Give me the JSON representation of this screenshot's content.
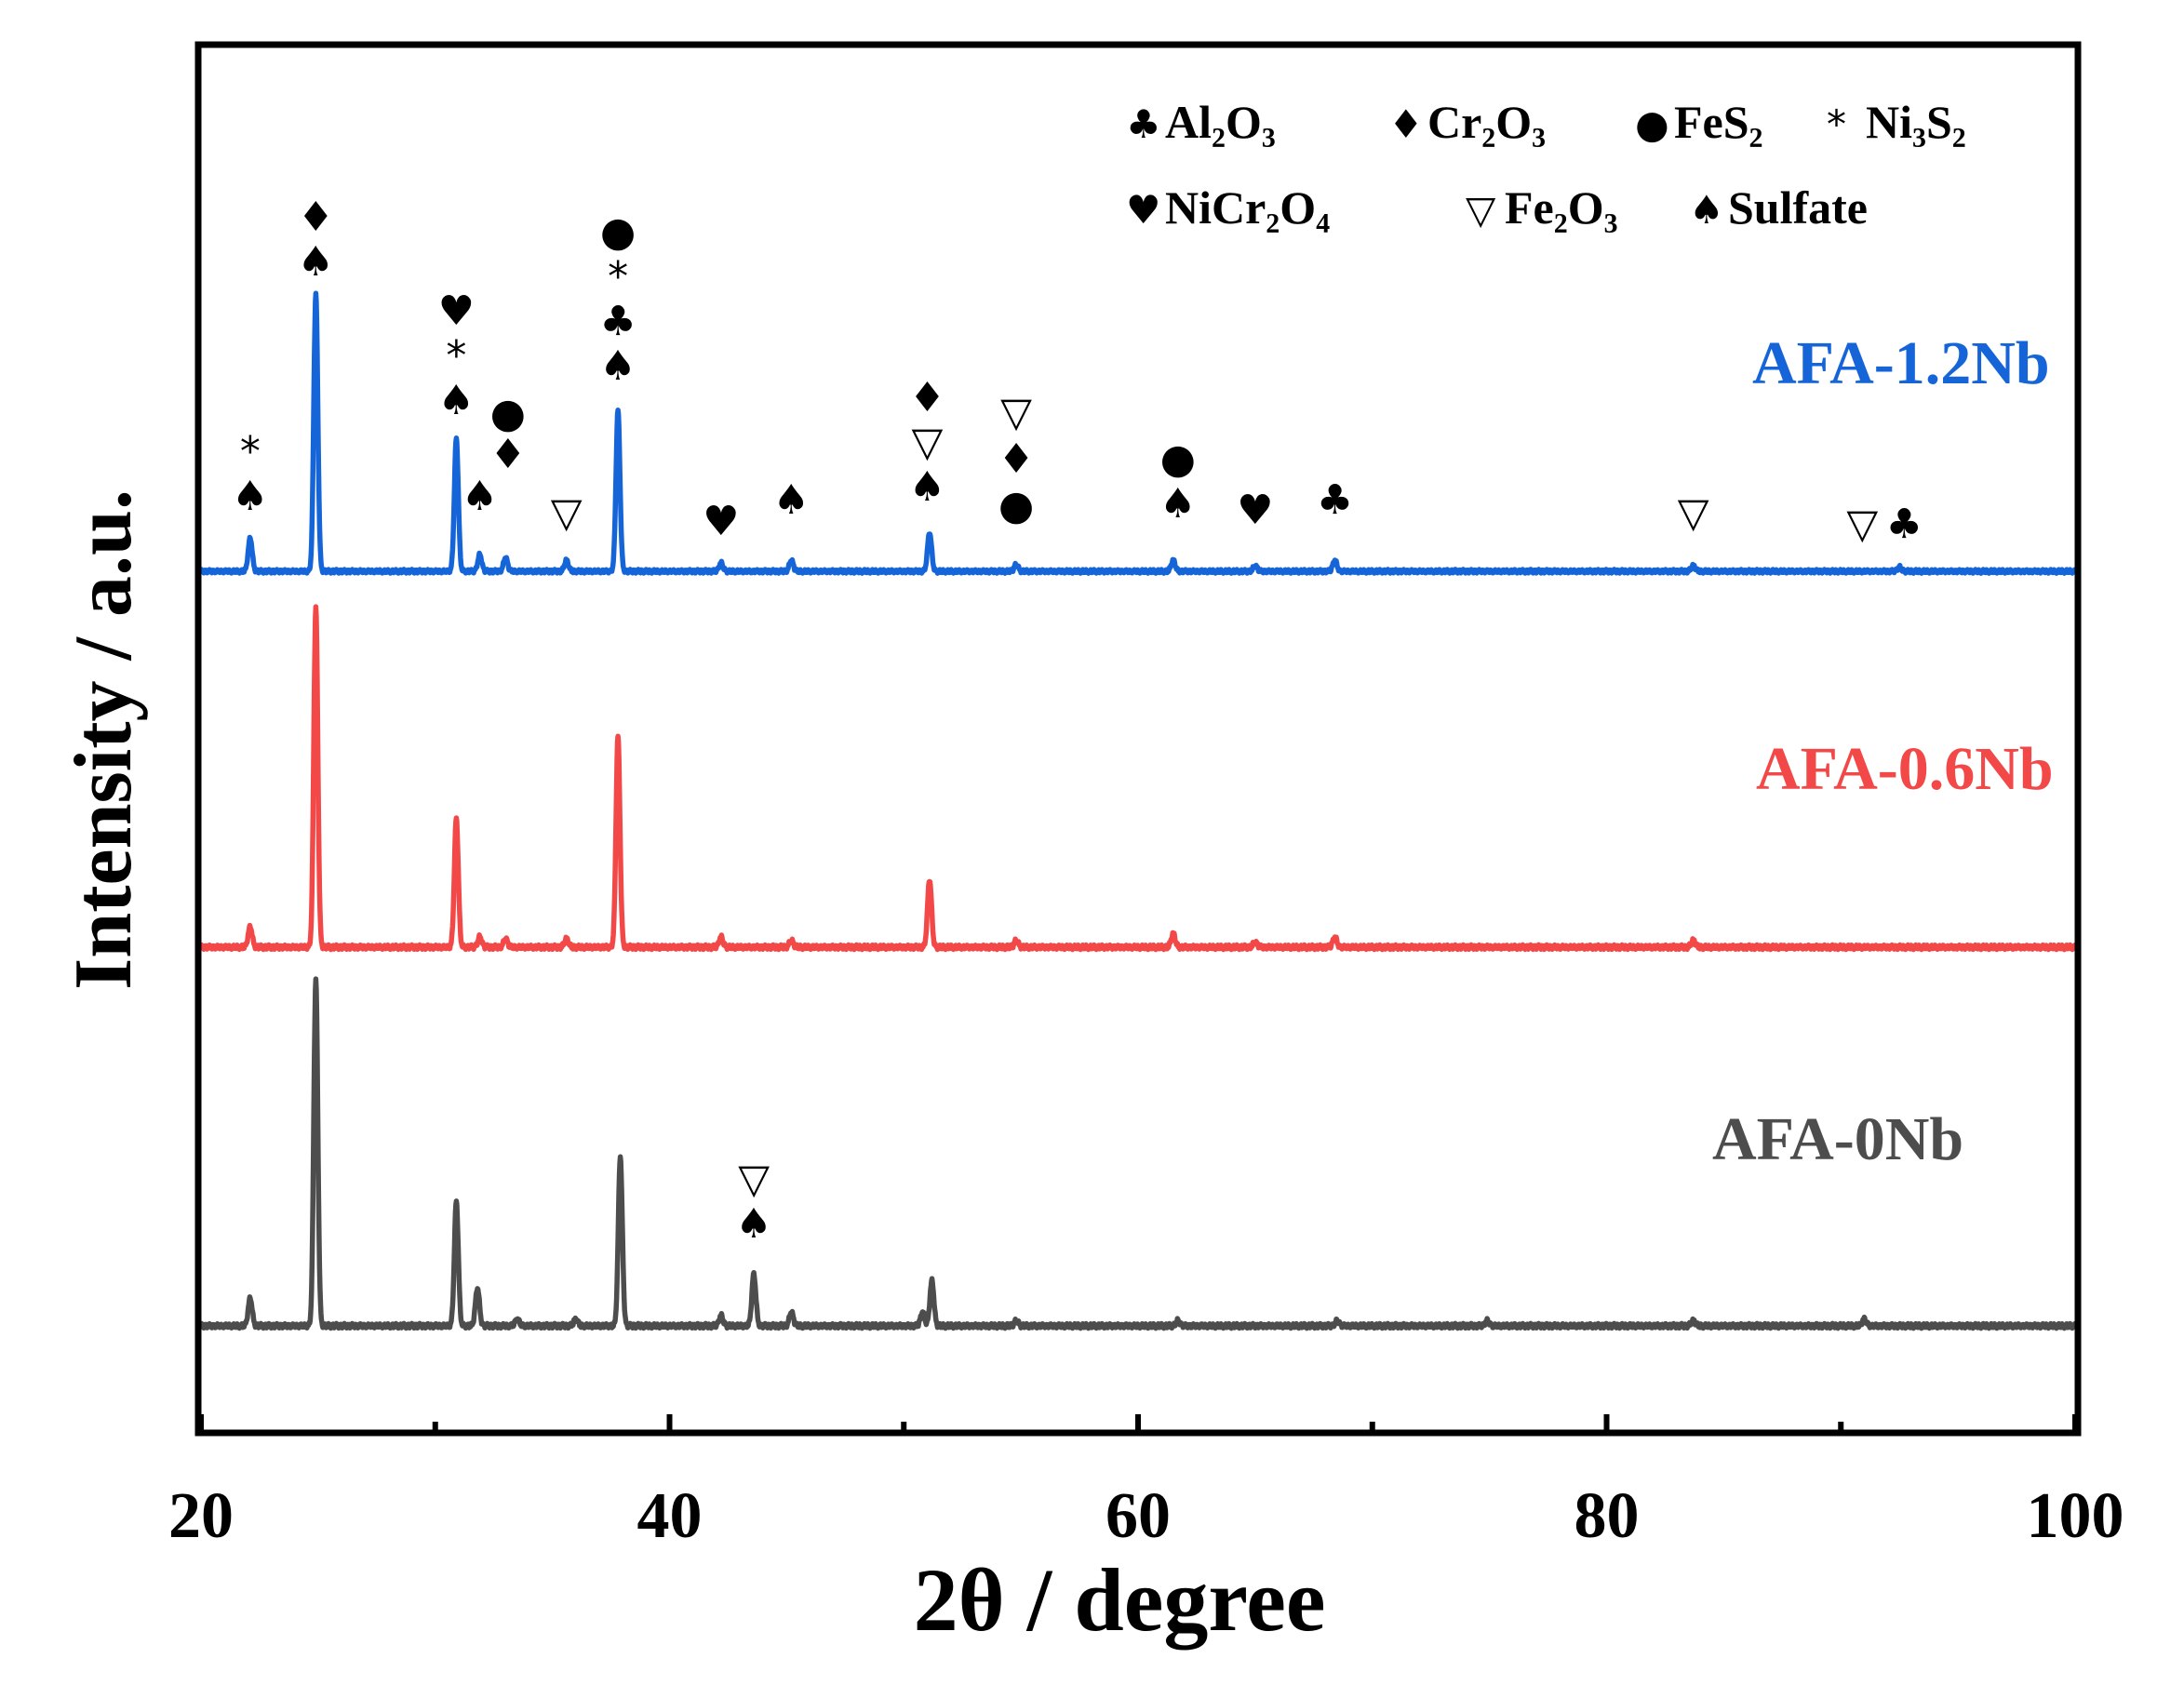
{
  "chart_data": {
    "type": "line",
    "title": "",
    "xlabel": "2θ / degree",
    "ylabel": "Intensity / a.u.",
    "xlim": [
      20,
      100
    ],
    "xticks": [
      "20",
      "40",
      "60",
      "80",
      "100"
    ],
    "legend": {
      "placement": "top-right",
      "entries": [
        {
          "symbol": "♣",
          "phase": "Al₂O₃"
        },
        {
          "symbol": "♦",
          "phase": "Cr₂O₃"
        },
        {
          "symbol": "●",
          "phase": "FeS₂"
        },
        {
          "symbol": "*",
          "phase": "Ni₃S₂"
        },
        {
          "symbol": "♥",
          "phase": "NiCr₂O₄"
        },
        {
          "symbol": "▽",
          "phase": "Fe₂O₃"
        },
        {
          "symbol": "♠",
          "phase": "Sulfate"
        }
      ]
    },
    "series": [
      {
        "name": "AFA-1.2Nb",
        "color": "#1565d8",
        "baseline": 0.0,
        "peaks": [
          [
            22.1,
            0.12
          ],
          [
            24.9,
            1.0
          ],
          [
            30.9,
            0.48
          ],
          [
            31.9,
            0.06
          ],
          [
            33.0,
            0.05
          ],
          [
            35.6,
            0.04
          ],
          [
            37.8,
            0.58
          ],
          [
            42.2,
            0.03
          ],
          [
            45.2,
            0.04
          ],
          [
            51.1,
            0.14
          ],
          [
            54.8,
            0.025
          ],
          [
            61.5,
            0.04
          ],
          [
            65.0,
            0.02
          ],
          [
            68.4,
            0.04
          ],
          [
            83.7,
            0.02
          ],
          [
            92.5,
            0.015
          ]
        ]
      },
      {
        "name": "AFA-0.6Nb",
        "color": "#f24848",
        "baseline": 0.0,
        "peaks": [
          [
            22.1,
            0.06
          ],
          [
            24.9,
            1.0
          ],
          [
            30.9,
            0.38
          ],
          [
            31.9,
            0.03
          ],
          [
            33.0,
            0.025
          ],
          [
            35.6,
            0.025
          ],
          [
            37.8,
            0.62
          ],
          [
            42.2,
            0.03
          ],
          [
            45.2,
            0.02
          ],
          [
            51.1,
            0.2
          ],
          [
            54.8,
            0.02
          ],
          [
            61.5,
            0.04
          ],
          [
            65.0,
            0.015
          ],
          [
            68.4,
            0.03
          ],
          [
            83.7,
            0.02
          ]
        ]
      },
      {
        "name": "AFA-0Nb",
        "color": "#4d4d4d",
        "baseline": 0.0,
        "peaks": [
          [
            22.1,
            0.08
          ],
          [
            24.9,
            1.0
          ],
          [
            30.9,
            0.36
          ],
          [
            31.8,
            0.11
          ],
          [
            33.5,
            0.02
          ],
          [
            36.0,
            0.02
          ],
          [
            37.9,
            0.49
          ],
          [
            42.2,
            0.03
          ],
          [
            43.6,
            0.15
          ],
          [
            45.2,
            0.04
          ],
          [
            50.8,
            0.04
          ],
          [
            51.2,
            0.13
          ],
          [
            54.8,
            0.015
          ],
          [
            61.7,
            0.015
          ],
          [
            68.5,
            0.015
          ],
          [
            74.9,
            0.015
          ],
          [
            83.7,
            0.015
          ],
          [
            91.0,
            0.02
          ]
        ]
      }
    ],
    "peak_annotations": [
      {
        "series": "AFA-1.2Nb",
        "x": 22.1,
        "symbols": [
          "♠",
          "*"
        ]
      },
      {
        "series": "AFA-1.2Nb",
        "x": 24.9,
        "symbols": [
          "♠",
          "♦"
        ]
      },
      {
        "series": "AFA-1.2Nb",
        "x": 30.9,
        "symbols": [
          "♠",
          "*",
          "♥"
        ]
      },
      {
        "series": "AFA-1.2Nb",
        "x": 31.9,
        "symbols": [
          "♠"
        ]
      },
      {
        "series": "AFA-1.2Nb",
        "x": 33.1,
        "symbols": [
          "♦",
          "●"
        ]
      },
      {
        "series": "AFA-1.2Nb",
        "x": 35.6,
        "symbols": [
          "▽"
        ]
      },
      {
        "series": "AFA-1.2Nb",
        "x": 37.8,
        "symbols": [
          "♠",
          "♣",
          "*",
          "●"
        ]
      },
      {
        "series": "AFA-1.2Nb",
        "x": 42.2,
        "symbols": [
          "♥"
        ]
      },
      {
        "series": "AFA-1.2Nb",
        "x": 45.2,
        "symbols": [
          "♠"
        ]
      },
      {
        "series": "AFA-1.2Nb",
        "x": 51.0,
        "symbols": [
          "♠",
          "▽",
          "♦"
        ]
      },
      {
        "series": "AFA-1.2Nb",
        "x": 54.8,
        "symbols": [
          "●",
          "♦",
          "▽"
        ]
      },
      {
        "series": "AFA-1.2Nb",
        "x": 61.7,
        "symbols": [
          "♠",
          "●"
        ]
      },
      {
        "series": "AFA-1.2Nb",
        "x": 65.0,
        "symbols": [
          "♥"
        ]
      },
      {
        "series": "AFA-1.2Nb",
        "x": 68.4,
        "symbols": [
          "♣"
        ]
      },
      {
        "series": "AFA-1.2Nb",
        "x": 83.7,
        "symbols": [
          "▽"
        ]
      },
      {
        "series": "AFA-1.2Nb",
        "x": 90.6,
        "symbols": [
          "▽"
        ]
      },
      {
        "series": "AFA-1.2Nb",
        "x": 92.7,
        "symbols": [
          "♣"
        ]
      },
      {
        "series": "AFA-0Nb",
        "x": 43.6,
        "symbols": [
          "♠",
          "▽"
        ]
      }
    ]
  }
}
